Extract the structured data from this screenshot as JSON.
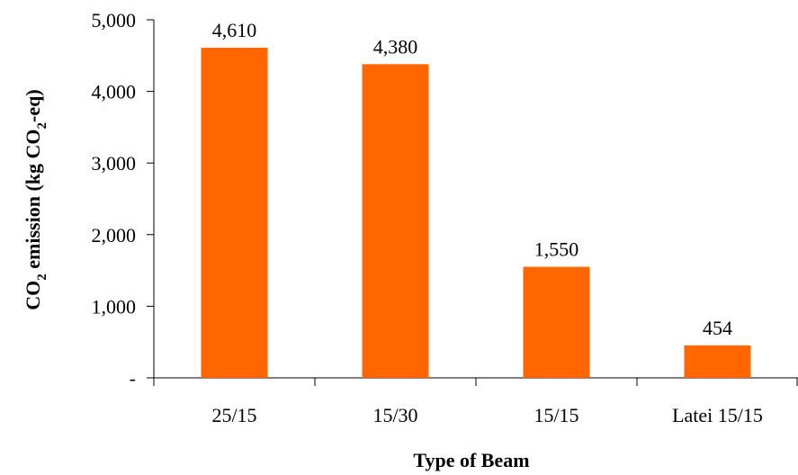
{
  "chart_data": {
    "type": "bar",
    "categories": [
      "25/15",
      "15/30",
      "15/15",
      "Latei 15/15"
    ],
    "values": [
      4610,
      4380,
      1550,
      454
    ],
    "data_labels": [
      "4,610",
      "4,380",
      "1,550",
      "454"
    ],
    "y_ticks": [
      0,
      1000,
      2000,
      3000,
      4000,
      5000
    ],
    "y_tick_labels": [
      "-",
      "1,000",
      "2,000",
      "3,000",
      "4,000",
      "5,000"
    ],
    "ylim": [
      0,
      5000
    ],
    "title": "",
    "xlabel": "Type of Beam",
    "ylabel": {
      "pre": "CO",
      "sub1": "2",
      "mid": " emission (kg CO",
      "sub2": "2",
      "post": "-eq)"
    },
    "bar_color": "#FF6600",
    "grid": false,
    "legend": "none"
  }
}
